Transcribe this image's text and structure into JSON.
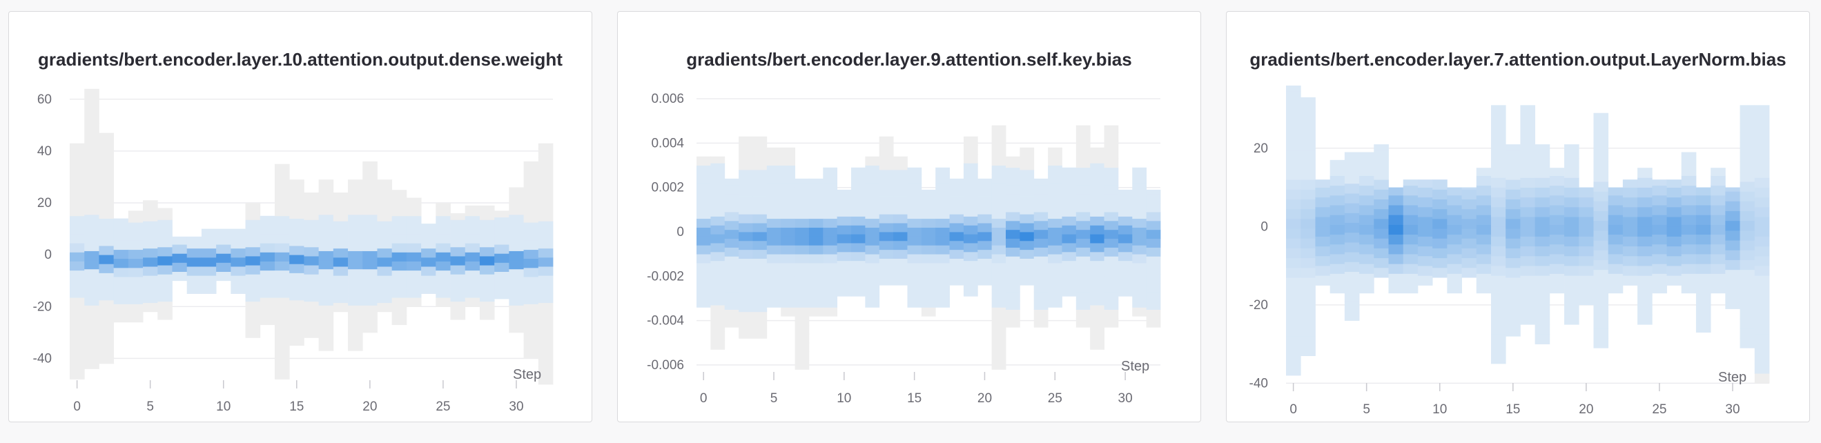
{
  "colors": {
    "background_bin": "#eeeeee",
    "accent": "#2e86de"
  },
  "chart_data": [
    {
      "type": "heatmap",
      "title": "gradients/bert.encoder.layer.10.attention.output.dense.weight",
      "xlabel": "Step",
      "ylabel": "",
      "xlim": [
        -0.5,
        32.5
      ],
      "ylim": [
        -50,
        65
      ],
      "x_ticks": [
        0,
        5,
        10,
        15,
        20,
        25,
        30
      ],
      "x_tick_labels": [
        "0",
        "5",
        "10",
        "15",
        "20",
        "25",
        "30"
      ],
      "y_ticks": [
        60,
        40,
        20,
        0,
        -20,
        -40
      ],
      "y_tick_labels": [
        "60",
        "40",
        "20",
        "0",
        "-20",
        "-40"
      ],
      "bin_height": 3.5,
      "grey_extent_top": [
        43,
        64,
        47,
        14,
        17,
        21,
        18,
        7,
        7,
        10,
        10,
        10,
        20,
        15,
        35,
        29,
        24,
        29,
        24,
        29,
        36,
        29,
        25,
        22,
        12,
        20,
        16,
        19,
        19,
        17,
        26,
        36,
        43
      ],
      "grey_extent_bottom": [
        -48,
        -44,
        -42,
        -26,
        -26,
        -22,
        -25,
        -10,
        -15,
        -15,
        -10,
        -15,
        -32,
        -27,
        -48,
        -35,
        -32,
        -37,
        -22,
        -37,
        -30,
        -22,
        -27,
        -20,
        -15,
        -20,
        -25,
        -20,
        -25,
        -17,
        -30,
        -40,
        -50
      ],
      "blue_band_top": 3,
      "blue_band_bottom": -7,
      "core_center": -2,
      "core_intensity": [
        0.45,
        0.7,
        0.75,
        0.7,
        0.6,
        0.7,
        0.78,
        0.8,
        0.8,
        0.8,
        0.8,
        0.7,
        0.75,
        0.78,
        0.6,
        0.75,
        0.62,
        0.7,
        0.78,
        0.65,
        0.75,
        0.7,
        0.8,
        0.75,
        0.7,
        0.8,
        0.7,
        0.75,
        0.8,
        0.7,
        0.85,
        0.7,
        0.5
      ]
    },
    {
      "type": "heatmap",
      "title": "gradients/bert.encoder.layer.9.attention.self.key.bias",
      "xlabel": "Step",
      "ylabel": "",
      "xlim": [
        -0.5,
        32.5
      ],
      "ylim": [
        -0.0065,
        0.0065
      ],
      "x_ticks": [
        0,
        5,
        10,
        15,
        20,
        25,
        30
      ],
      "x_tick_labels": [
        "0",
        "5",
        "10",
        "15",
        "20",
        "25",
        "30"
      ],
      "y_ticks": [
        0.006,
        0.004,
        0.002,
        0,
        -0.002,
        -0.004,
        -0.006
      ],
      "y_tick_labels": [
        "0.006",
        "0.004",
        "0.002",
        "0",
        "-0.002",
        "-0.004",
        "-0.006"
      ],
      "bin_height": 0.0004,
      "grey_extent_top": [
        0.0034,
        0.0034,
        0.0024,
        0.0043,
        0.0043,
        0.0038,
        0.0038,
        0.0024,
        0.0024,
        0.0029,
        0.0019,
        0.0029,
        0.0034,
        0.0043,
        0.0034,
        0.0029,
        0.0019,
        0.0029,
        0.0024,
        0.0043,
        0.0024,
        0.0048,
        0.0034,
        0.0038,
        0.0024,
        0.0038,
        0.0029,
        0.0048,
        0.0038,
        0.0048,
        0.0019,
        0.0029,
        0.0019
      ],
      "grey_extent_bottom": [
        -0.0034,
        -0.0053,
        -0.0043,
        -0.0048,
        -0.0048,
        -0.0034,
        -0.0038,
        -0.0062,
        -0.0038,
        -0.0038,
        -0.0029,
        -0.0029,
        -0.0034,
        -0.0024,
        -0.0024,
        -0.0034,
        -0.0038,
        -0.0034,
        -0.0024,
        -0.0029,
        -0.0024,
        -0.0062,
        -0.0043,
        -0.0024,
        -0.0043,
        -0.0034,
        -0.0029,
        -0.0043,
        -0.0053,
        -0.0043,
        -0.0029,
        -0.0038,
        -0.0043
      ],
      "blue_band_top": 0.0008,
      "blue_band_bottom": -0.0012,
      "core_center": -0.0002,
      "core_intensity": [
        0.55,
        0.5,
        0.5,
        0.55,
        0.6,
        0.6,
        0.65,
        0.7,
        0.8,
        0.65,
        0.7,
        0.75,
        0.6,
        0.65,
        0.7,
        0.55,
        0.6,
        0.65,
        0.7,
        0.7,
        0.65,
        0.3,
        0.8,
        0.8,
        0.65,
        0.6,
        0.7,
        0.6,
        0.85,
        0.65,
        0.7,
        0.5,
        0.55
      ]
    },
    {
      "type": "heatmap",
      "title": "gradients/bert.encoder.layer.7.attention.output.LayerNorm.bias",
      "xlabel": "Step",
      "ylabel": "",
      "xlim": [
        -0.5,
        32.5
      ],
      "ylim": [
        -41,
        36
      ],
      "x_ticks": [
        0,
        5,
        10,
        15,
        20,
        25,
        30
      ],
      "x_tick_labels": [
        "0",
        "5",
        "10",
        "15",
        "20",
        "25",
        "30"
      ],
      "y_ticks": [
        20,
        0,
        -20,
        -40
      ],
      "y_tick_labels": [
        "20",
        "0",
        "-20",
        "-40"
      ],
      "bin_height": 2.5,
      "grey_extent_top": [
        36,
        33,
        12,
        17,
        19,
        19,
        21,
        10,
        12,
        12,
        12,
        10,
        10,
        15,
        31,
        21,
        31,
        21,
        15,
        21,
        10,
        29,
        10,
        12,
        15,
        12,
        12,
        19,
        10,
        15,
        10,
        31,
        31
      ],
      "grey_extent_bottom": [
        -38,
        -33,
        -15,
        -17,
        -24,
        -17,
        -13,
        -17,
        -17,
        -15,
        -13,
        -17,
        -13,
        -17,
        -35,
        -28,
        -25,
        -30,
        -17,
        -25,
        -20,
        -31,
        -17,
        -15,
        -25,
        -17,
        -15,
        -17,
        -27,
        -17,
        -21,
        -31,
        -40
      ],
      "blue_band_top": 12,
      "blue_band_bottom": -12,
      "core_center": 0,
      "core_intensity": [
        0.15,
        0.2,
        0.4,
        0.45,
        0.4,
        0.45,
        0.55,
        0.85,
        0.55,
        0.5,
        0.55,
        0.45,
        0.4,
        0.45,
        0.2,
        0.45,
        0.35,
        0.45,
        0.4,
        0.45,
        0.35,
        0.2,
        0.5,
        0.45,
        0.55,
        0.5,
        0.6,
        0.5,
        0.55,
        0.35,
        0.55,
        0.2,
        0.15
      ]
    }
  ]
}
